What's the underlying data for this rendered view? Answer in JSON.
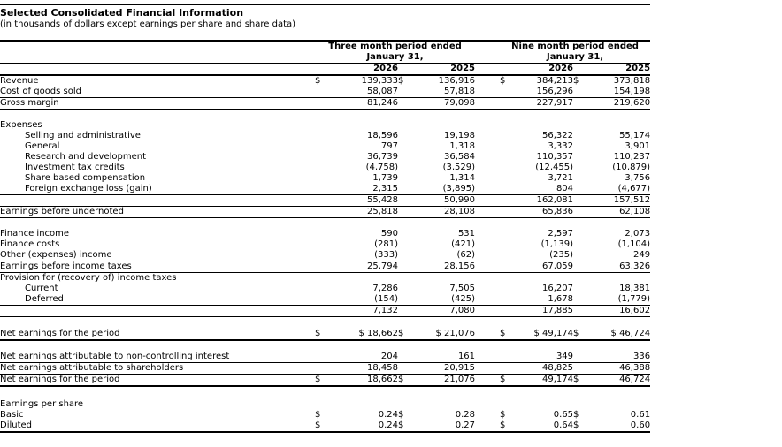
{
  "page": {
    "title": "Selected Consolidated Financial Information",
    "subtitle": "(in thousands of dollars except earnings per share and share data)"
  },
  "table": {
    "header": {
      "groups": [
        {
          "line1": "Three month period ended",
          "line2": "January 31,"
        },
        {
          "line1": "Nine month period ended",
          "line2": "January 31,"
        }
      ],
      "years": [
        "2026",
        "2025",
        "2026",
        "2025"
      ]
    },
    "rows": [
      {
        "label": "Revenue",
        "dollars": [
          "$",
          "$",
          "$",
          "$"
        ],
        "values": [
          "139,333",
          "136,916",
          "384,213",
          "373,818"
        ],
        "underline": "none"
      },
      {
        "label": "Cost of goods sold",
        "values": [
          "58,087",
          "57,818",
          "156,296",
          "154,198"
        ],
        "underline": "thin"
      },
      {
        "label": "Gross margin",
        "values": [
          "81,246",
          "79,098",
          "227,917",
          "219,620"
        ],
        "underline": "thick"
      },
      {
        "type": "spacer",
        "height": 11
      },
      {
        "label": "Expenses"
      },
      {
        "label": "Selling and administrative",
        "indent": true,
        "values": [
          "18,596",
          "19,198",
          "56,322",
          "55,174"
        ]
      },
      {
        "label": "General",
        "indent": true,
        "values": [
          "797",
          "1,318",
          "3,332",
          "3,901"
        ]
      },
      {
        "label": "Research and development",
        "indent": true,
        "values": [
          "36,739",
          "36,584",
          "110,357",
          "110,237"
        ]
      },
      {
        "label": "Investment tax credits",
        "indent": true,
        "values": [
          "(4,758)",
          "(3,529)",
          "(12,455)",
          "(10,879)"
        ]
      },
      {
        "label": "Share based compensation",
        "indent": true,
        "values": [
          "1,739",
          "1,314",
          "3,721",
          "3,756"
        ]
      },
      {
        "label": "Foreign exchange loss (gain)",
        "indent": true,
        "values": [
          "2,315",
          "(3,895)",
          "804",
          "(4,677)"
        ],
        "underline": "thin"
      },
      {
        "label": "",
        "values": [
          "55,428",
          "50,990",
          "162,081",
          "157,512"
        ],
        "underline": "thin"
      },
      {
        "label": "Earnings before undernoted",
        "values": [
          "25,818",
          "28,108",
          "65,836",
          "62,108"
        ],
        "underline": "thin"
      },
      {
        "type": "spacer",
        "height": 12
      },
      {
        "label": "Finance income",
        "values": [
          "590",
          "531",
          "2,597",
          "2,073"
        ]
      },
      {
        "label": "Finance costs",
        "values": [
          "(281)",
          "(421)",
          "(1,139)",
          "(1,104)"
        ]
      },
      {
        "label": "Other (expenses) income",
        "values": [
          "(333)",
          "(62)",
          "(235)",
          "249"
        ],
        "underline": "thin"
      },
      {
        "label": "Earnings before income taxes",
        "values": [
          "25,794",
          "28,156",
          "67,059",
          "63,326"
        ],
        "underline": "thin"
      },
      {
        "label": "Provision for (recovery of) income taxes"
      },
      {
        "label": "Current",
        "indent": true,
        "values": [
          "7,286",
          "7,505",
          "16,207",
          "18,381"
        ]
      },
      {
        "label": "Deferred",
        "indent": true,
        "values": [
          "(154)",
          "(425)",
          "1,678",
          "(1,779)"
        ],
        "underline": "thin"
      },
      {
        "label": "",
        "values": [
          "7,132",
          "7,080",
          "17,885",
          "16,602"
        ],
        "underline": "thin"
      },
      {
        "type": "spacer",
        "height": 13
      },
      {
        "label": "Net earnings for the period",
        "dollars": [
          "$",
          "$",
          "$",
          "$"
        ],
        "values": [
          "$ 18,662",
          "$ 21,076",
          "$ 49,174",
          "$ 46,724"
        ],
        "underline": "thick"
      },
      {
        "type": "spacer",
        "height": 12
      },
      {
        "label": "Net earnings attributable to non-controlling interest",
        "values": [
          "204",
          "161",
          "349",
          "336"
        ],
        "underline": "thin"
      },
      {
        "label": "Net earnings attributable to shareholders",
        "values": [
          "18,458",
          "20,915",
          "48,825",
          "46,388"
        ],
        "underline": "thin"
      },
      {
        "label": "Net earnings for the period",
        "dollars": [
          "$",
          "$",
          "$",
          "$"
        ],
        "values": [
          "18,662",
          "21,076",
          "49,174",
          "46,724"
        ],
        "underline": "thick"
      },
      {
        "type": "spacer",
        "height": 14
      },
      {
        "label": "Earnings per share"
      },
      {
        "label": "Basic",
        "dollars": [
          "$",
          "$",
          "$",
          "$"
        ],
        "values": [
          "0.24",
          "0.28",
          "0.65",
          "0.61"
        ]
      },
      {
        "label": "Diluted",
        "dollars": [
          "$",
          "$",
          "$",
          "$"
        ],
        "values": [
          "0.24",
          "0.27",
          "0.64",
          "0.60"
        ],
        "underline": "thick"
      }
    ]
  }
}
